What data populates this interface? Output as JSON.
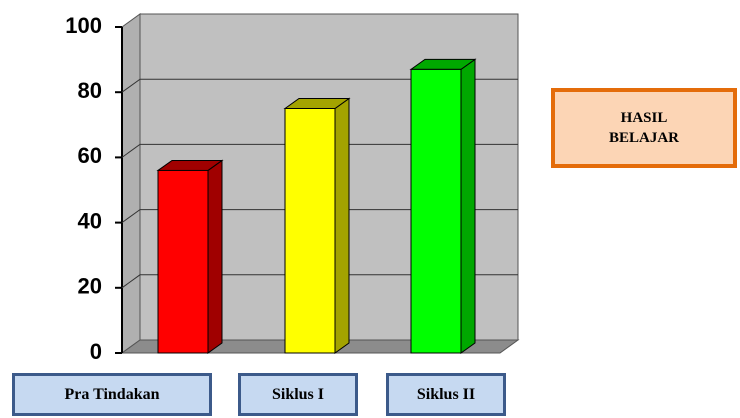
{
  "chart_data": {
    "type": "bar3d",
    "categories": [
      "Pra Tindakan",
      "Siklus I",
      "Siklus II"
    ],
    "series": [
      {
        "name": "HASIL BELAJAR",
        "values": [
          56,
          75,
          87
        ]
      }
    ],
    "colors": [
      "#ff0000",
      "#ffff00",
      "#00ff00"
    ],
    "side_colors": [
      "#a00000",
      "#a3a300",
      "#00a800"
    ],
    "ylim": [
      0,
      100
    ],
    "yticks": [
      0,
      20,
      40,
      60,
      80,
      100
    ],
    "grid": true
  }
}
